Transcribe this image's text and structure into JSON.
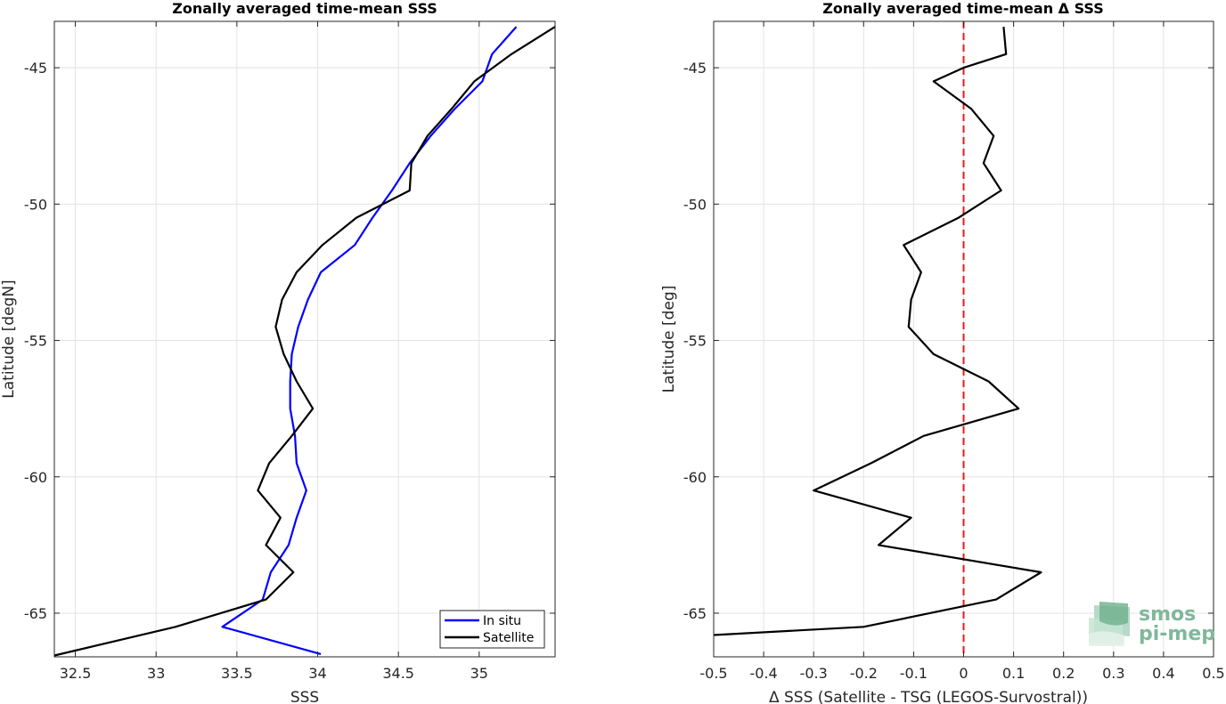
{
  "colors": {
    "in_situ": "#0000ff",
    "satellite": "#000000",
    "zero_line": "#e41a1c",
    "grid": "#e3e3e3",
    "logo": "#7fb89a"
  },
  "logo": {
    "line1": "smos",
    "line2": "pi-mep"
  },
  "chart_data": [
    {
      "type": "line",
      "title": "Zonally averaged time-mean SSS",
      "xlabel": "SSS",
      "ylabel": "Latitude [degN]",
      "xlim": [
        32.37,
        35.47
      ],
      "ylim": [
        -66.6,
        -43.3
      ],
      "xticks": [
        32.5,
        33,
        33.5,
        34,
        34.5,
        35
      ],
      "xtick_labels": [
        "32.5",
        "33",
        "33.5",
        "34",
        "34.5",
        "35"
      ],
      "yticks": [
        -45,
        -50,
        -55,
        -60,
        -65
      ],
      "ytick_labels": [
        "-45",
        "-50",
        "-55",
        "-60",
        "-65"
      ],
      "grid": true,
      "legend": {
        "position": "bottom-right",
        "entries": [
          "In situ",
          "Satellite"
        ]
      },
      "series": [
        {
          "name": "In situ",
          "color": "#0000ff",
          "points": [
            [
              35.23,
              -43.5
            ],
            [
              35.08,
              -44.5
            ],
            [
              35.02,
              -45.5
            ],
            [
              34.85,
              -46.5
            ],
            [
              34.7,
              -47.5
            ],
            [
              34.57,
              -48.5
            ],
            [
              34.46,
              -49.5
            ],
            [
              34.34,
              -50.5
            ],
            [
              34.23,
              -51.5
            ],
            [
              34.02,
              -52.5
            ],
            [
              33.94,
              -53.5
            ],
            [
              33.88,
              -54.5
            ],
            [
              33.84,
              -55.5
            ],
            [
              33.83,
              -56.5
            ],
            [
              33.83,
              -57.5
            ],
            [
              33.86,
              -58.5
            ],
            [
              33.87,
              -59.5
            ],
            [
              33.93,
              -60.5
            ],
            [
              33.87,
              -61.5
            ],
            [
              33.82,
              -62.5
            ],
            [
              33.71,
              -63.5
            ],
            [
              33.66,
              -64.5
            ],
            [
              33.41,
              -65.5
            ],
            [
              34.02,
              -66.5
            ]
          ]
        },
        {
          "name": "Satellite",
          "color": "#000000",
          "points": [
            [
              35.47,
              -43.5
            ],
            [
              35.2,
              -44.5
            ],
            [
              34.97,
              -45.5
            ],
            [
              34.83,
              -46.5
            ],
            [
              34.68,
              -47.5
            ],
            [
              34.58,
              -48.5
            ],
            [
              34.57,
              -49.5
            ],
            [
              34.24,
              -50.5
            ],
            [
              34.03,
              -51.5
            ],
            [
              33.87,
              -52.5
            ],
            [
              33.78,
              -53.5
            ],
            [
              33.74,
              -54.5
            ],
            [
              33.79,
              -55.5
            ],
            [
              33.87,
              -56.5
            ],
            [
              33.97,
              -57.5
            ],
            [
              33.84,
              -58.5
            ],
            [
              33.7,
              -59.5
            ],
            [
              33.63,
              -60.5
            ],
            [
              33.77,
              -61.5
            ],
            [
              33.68,
              -62.5
            ],
            [
              33.85,
              -63.5
            ],
            [
              33.68,
              -64.5
            ],
            [
              33.12,
              -65.5
            ],
            [
              32.37,
              -66.55
            ]
          ]
        }
      ]
    },
    {
      "type": "line",
      "title": "Zonally averaged time-mean Δ SSS",
      "xlabel": "Δ SSS (Satellite - TSG (LEGOS-Survostral))",
      "ylabel": "Latitude [deg]",
      "xlim": [
        -0.5,
        0.5
      ],
      "ylim": [
        -66.6,
        -43.3
      ],
      "xticks": [
        -0.5,
        -0.4,
        -0.3,
        -0.2,
        -0.1,
        0,
        0.1,
        0.2,
        0.3,
        0.4,
        0.5
      ],
      "xtick_labels": [
        "-0.5",
        "-0.4",
        "-0.3",
        "-0.2",
        "-0.1",
        "0",
        "0.1",
        "0.2",
        "0.3",
        "0.4",
        "0.5"
      ],
      "yticks": [
        -45,
        -50,
        -55,
        -60,
        -65
      ],
      "ytick_labels": [
        "-45",
        "-50",
        "-55",
        "-60",
        "-65"
      ],
      "grid": true,
      "reference_line": {
        "x": 0,
        "style": "dashed",
        "color": "#e41a1c"
      },
      "series": [
        {
          "color": "#000000",
          "points": [
            [
              0.08,
              -43.5
            ],
            [
              0.085,
              -44.5
            ],
            [
              0.0,
              -45.0
            ],
            [
              -0.06,
              -45.5
            ],
            [
              0.015,
              -46.5
            ],
            [
              0.06,
              -47.5
            ],
            [
              0.04,
              -48.5
            ],
            [
              0.075,
              -49.5
            ],
            [
              -0.01,
              -50.5
            ],
            [
              -0.12,
              -51.5
            ],
            [
              -0.085,
              -52.5
            ],
            [
              -0.105,
              -53.5
            ],
            [
              -0.11,
              -54.5
            ],
            [
              -0.06,
              -55.5
            ],
            [
              0.05,
              -56.5
            ],
            [
              0.11,
              -57.5
            ],
            [
              -0.08,
              -58.5
            ],
            [
              -0.185,
              -59.5
            ],
            [
              -0.3,
              -60.5
            ],
            [
              -0.105,
              -61.5
            ],
            [
              -0.17,
              -62.5
            ],
            [
              0.155,
              -63.5
            ],
            [
              0.065,
              -64.5
            ],
            [
              -0.2,
              -65.5
            ],
            [
              -0.5,
              -65.8
            ]
          ]
        }
      ]
    }
  ]
}
